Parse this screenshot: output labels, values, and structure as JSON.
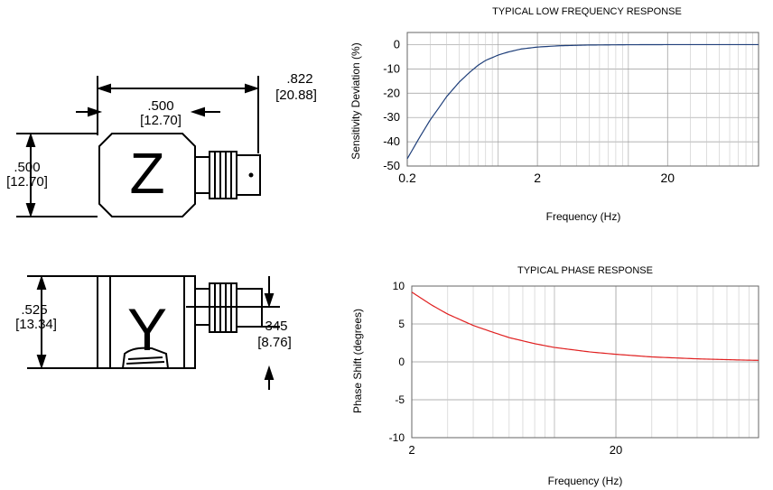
{
  "drawing": {
    "top_view": {
      "letter": "Z",
      "width_in": ".500",
      "width_mm": "[12.70]",
      "height_in": ".500",
      "height_mm": "[12.70]",
      "overall_in": ".822",
      "overall_mm": "[20.88]"
    },
    "side_view": {
      "letter": "Y",
      "height_in": ".525",
      "height_mm": "[13.34]",
      "connector_in": "345",
      "connector_mm": "[8.76]"
    }
  },
  "chart_data": [
    {
      "type": "line",
      "title": "TYPICAL LOW FREQUENCY RESPONSE",
      "xlabel": "Frequency (Hz)",
      "ylabel": "Sensitivity Deviation (%)",
      "xscale": "log",
      "xlim": [
        0.2,
        100
      ],
      "ylim": [
        -50,
        5
      ],
      "xticks": [
        0.2,
        2,
        20
      ],
      "xtick_labels": [
        "0.2",
        "2",
        "20"
      ],
      "yticks": [
        0,
        -10,
        -20,
        -30,
        -40,
        -50
      ],
      "ytick_labels": [
        "0",
        "-10",
        "-20",
        "-30",
        "-40",
        "-50"
      ],
      "grid": true,
      "series": [
        {
          "color": "#1f3f7a",
          "x": [
            0.2,
            0.25,
            0.3,
            0.35,
            0.4,
            0.5,
            0.6,
            0.7,
            0.8,
            1.0,
            1.2,
            1.5,
            2,
            3,
            5,
            10,
            20,
            50,
            100
          ],
          "values": [
            -47,
            -38,
            -31,
            -26,
            -21.5,
            -15.5,
            -11.5,
            -8.5,
            -6.5,
            -4.3,
            -3,
            -1.8,
            -1,
            -0.45,
            -0.17,
            -0.04,
            0,
            0,
            0
          ]
        }
      ]
    },
    {
      "type": "line",
      "title": "TYPICAL PHASE RESPONSE",
      "xlabel": "Frequency (Hz)",
      "ylabel": "Phase Shift (degrees)",
      "xscale": "log",
      "xlim": [
        2,
        100
      ],
      "ylim": [
        -10,
        10
      ],
      "xticks": [
        2,
        20
      ],
      "xtick_labels": [
        "2",
        "20"
      ],
      "yticks": [
        10,
        5,
        0,
        -5,
        -10
      ],
      "ytick_labels": [
        "10",
        "5",
        "0",
        "-5",
        "-10"
      ],
      "grid": true,
      "series": [
        {
          "color": "#e02020",
          "x": [
            2,
            2.5,
            3,
            4,
            5,
            6,
            8,
            10,
            15,
            20,
            30,
            50,
            80,
            100
          ],
          "values": [
            9.2,
            7.5,
            6.3,
            4.8,
            3.9,
            3.2,
            2.4,
            1.9,
            1.3,
            1.0,
            0.65,
            0.4,
            0.25,
            0.2
          ]
        }
      ]
    }
  ]
}
